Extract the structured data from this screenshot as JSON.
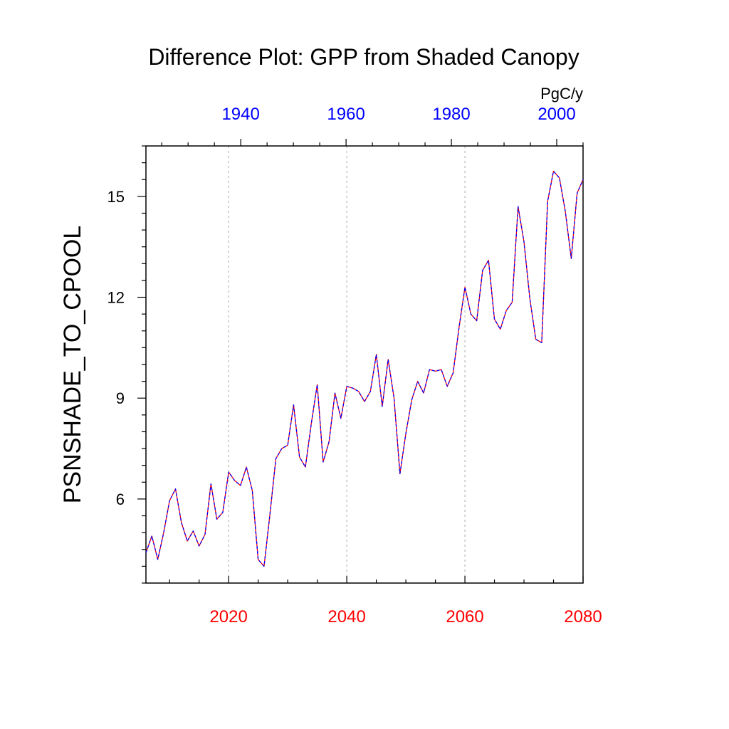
{
  "chart_data": {
    "type": "line",
    "title": "Difference Plot: GPP from Shaded Canopy",
    "ylabel": "PSNSHADE_TO_CPOOL",
    "units": "PgC/y",
    "ylim": [
      3.5,
      16.5
    ],
    "yticks": [
      6,
      9,
      12,
      15
    ],
    "yminor_step": 0.5,
    "bottom_axis": {
      "xlim": [
        2006,
        2080
      ],
      "ticks": [
        2020,
        2040,
        2060,
        2080
      ],
      "color": "#ff0000"
    },
    "top_axis": {
      "xlim": [
        1922,
        2005
      ],
      "ticks": [
        1940,
        1960,
        1980,
        2000
      ],
      "color": "#0000ff"
    },
    "grid": "dashed vertical lines at major bottom ticks",
    "series": [
      {
        "line_colors": [
          "#ff0000",
          "#0000ff"
        ],
        "x": [
          2006,
          2007,
          2008,
          2009,
          2010,
          2011,
          2012,
          2013,
          2014,
          2015,
          2016,
          2017,
          2018,
          2019,
          2020,
          2021,
          2022,
          2023,
          2024,
          2025,
          2026,
          2027,
          2028,
          2029,
          2030,
          2031,
          2032,
          2033,
          2034,
          2035,
          2036,
          2037,
          2038,
          2039,
          2040,
          2041,
          2042,
          2043,
          2044,
          2045,
          2046,
          2047,
          2048,
          2049,
          2050,
          2051,
          2052,
          2053,
          2054,
          2055,
          2056,
          2057,
          2058,
          2059,
          2060,
          2061,
          2062,
          2063,
          2064,
          2065,
          2066,
          2067,
          2068,
          2069,
          2070,
          2071,
          2072,
          2073,
          2074,
          2075,
          2076,
          2077,
          2078,
          2079,
          2080
        ],
        "values": [
          4.4,
          4.9,
          4.2,
          5.0,
          5.95,
          6.3,
          5.3,
          4.75,
          5.05,
          4.6,
          4.95,
          6.45,
          5.4,
          5.6,
          6.8,
          6.55,
          6.4,
          6.95,
          6.25,
          4.2,
          4.0,
          5.55,
          7.2,
          7.5,
          7.6,
          8.8,
          7.25,
          6.95,
          8.25,
          9.4,
          7.1,
          7.7,
          9.15,
          8.4,
          9.35,
          9.3,
          9.2,
          8.9,
          9.2,
          10.3,
          8.75,
          10.15,
          9.0,
          6.75,
          7.95,
          8.95,
          9.5,
          9.15,
          9.85,
          9.8,
          9.85,
          9.35,
          9.75,
          11.1,
          12.3,
          11.5,
          11.3,
          12.8,
          13.1,
          11.35,
          11.05,
          11.6,
          11.85,
          14.7,
          13.65,
          11.95,
          10.75,
          10.65,
          14.85,
          15.75,
          15.55,
          14.55,
          13.15,
          15.1,
          15.5
        ]
      }
    ]
  }
}
